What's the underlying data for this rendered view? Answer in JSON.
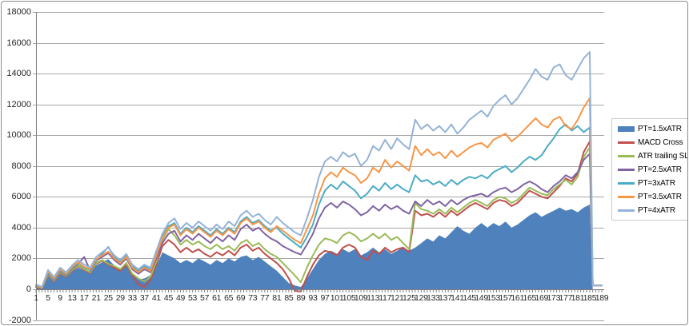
{
  "chart": {
    "background": "#ffffff",
    "frame_border_color": "#8c8c8c",
    "gridline_color": "#a6a6a6",
    "axis_line_color": "#7f7f7f",
    "text_color": "#262626",
    "y_axis": {
      "min": -2000,
      "max": 18000,
      "step": 2000,
      "tick_values": [
        -2000,
        0,
        2000,
        4000,
        6000,
        8000,
        10000,
        12000,
        14000,
        16000,
        18000
      ],
      "tick_labels": [
        "-2000",
        "0",
        "2000",
        "4000",
        "6000",
        "8000",
        "10000",
        "12000",
        "14000",
        "16000",
        "18000"
      ]
    },
    "x_axis": {
      "first_point": 1,
      "last_point": 189,
      "label_step": 4,
      "tick_labels": [
        "1",
        "5",
        "9",
        "13",
        "17",
        "21",
        "25",
        "29",
        "33",
        "37",
        "41",
        "45",
        "49",
        "53",
        "57",
        "61",
        "65",
        "69",
        "73",
        "77",
        "81",
        "85",
        "89",
        "93",
        "97",
        "101",
        "105",
        "109",
        "113",
        "117",
        "121",
        "125",
        "129",
        "133",
        "137",
        "141",
        "145",
        "149",
        "153",
        "157",
        "161",
        "165",
        "169",
        "173",
        "177",
        "181",
        "185",
        "189"
      ]
    }
  },
  "legend": {
    "position": "right",
    "items": [
      {
        "label": "PT=1.5xATR",
        "color": "#4F81BD",
        "marker": "bar"
      },
      {
        "label": "MACD Cross",
        "color": "#C0504D",
        "marker": "line"
      },
      {
        "label": "ATR trailing SL",
        "color": "#9BBB59",
        "marker": "line"
      },
      {
        "label": "PT=2.5xATR",
        "color": "#8064A2",
        "marker": "line"
      },
      {
        "label": "PT=3xATR",
        "color": "#4BACC6",
        "marker": "line"
      },
      {
        "label": "PT=3.5xATR",
        "color": "#F79646",
        "marker": "line"
      },
      {
        "label": "PT=4xATR",
        "color": "#95B3D7",
        "marker": "line"
      }
    ]
  },
  "chart_data": {
    "type": "area",
    "title": "",
    "xlabel": "",
    "ylabel": "",
    "ylim": [
      -2000,
      18000
    ],
    "xlim": [
      1,
      189
    ],
    "grid": true,
    "legend_position": "right",
    "x": [
      1,
      3,
      5,
      7,
      9,
      11,
      13,
      15,
      17,
      19,
      21,
      23,
      25,
      27,
      29,
      31,
      33,
      35,
      37,
      39,
      41,
      43,
      45,
      47,
      49,
      51,
      53,
      55,
      57,
      59,
      61,
      63,
      65,
      67,
      69,
      71,
      73,
      75,
      77,
      79,
      81,
      83,
      85,
      87,
      89,
      91,
      93,
      95,
      97,
      99,
      101,
      103,
      105,
      107,
      109,
      111,
      113,
      115,
      117,
      119,
      121,
      123,
      125,
      127,
      129,
      131,
      133,
      135,
      137,
      139,
      141,
      143,
      145,
      147,
      149,
      151,
      153,
      155,
      157,
      159,
      161,
      163,
      165,
      167,
      169,
      171,
      173,
      175,
      177,
      179,
      181,
      183,
      185,
      186,
      189
    ],
    "series": [
      {
        "name": "PT=1.5xATR",
        "type": "area",
        "color": "#4F81BD",
        "values": [
          150,
          60,
          850,
          500,
          1000,
          750,
          1150,
          1400,
          1200,
          1000,
          1550,
          1750,
          1950,
          1550,
          1350,
          1600,
          1000,
          650,
          700,
          900,
          1500,
          2400,
          2200,
          2000,
          1700,
          1900,
          1700,
          2000,
          1800,
          1600,
          1900,
          1700,
          2000,
          1800,
          2100,
          2200,
          1900,
          2100,
          1800,
          1500,
          1200,
          800,
          400,
          250,
          150,
          700,
          1300,
          1900,
          2300,
          2500,
          2300,
          2600,
          2400,
          2600,
          2200,
          2400,
          2700,
          2400,
          2600,
          2300,
          2500,
          2700,
          2500,
          2700,
          3000,
          3300,
          3100,
          3500,
          3300,
          3700,
          4100,
          3800,
          3600,
          4000,
          4300,
          4000,
          4300,
          4100,
          4400,
          4000,
          4200,
          4500,
          4800,
          5000,
          4700,
          4900,
          5100,
          5300,
          5100,
          5200,
          5000,
          5300,
          5500,
          0,
          0
        ]
      },
      {
        "name": "MACD Cross",
        "type": "line",
        "color": "#C0504D",
        "values": [
          150,
          50,
          900,
          500,
          1050,
          800,
          1200,
          1500,
          1250,
          1050,
          1650,
          1850,
          1600,
          1400,
          1200,
          1600,
          900,
          300,
          150,
          600,
          1600,
          2800,
          3200,
          2900,
          2400,
          2700,
          2400,
          2600,
          2300,
          2100,
          2400,
          2200,
          2500,
          2200,
          2700,
          2900,
          2500,
          2700,
          2300,
          2000,
          1700,
          1300,
          700,
          -100,
          -150,
          800,
          1600,
          2200,
          2500,
          2400,
          2200,
          2700,
          2900,
          2700,
          2100,
          1900,
          2500,
          2300,
          2700,
          2400,
          2600,
          2700,
          2400,
          5100,
          4800,
          4900,
          4700,
          5000,
          4700,
          5100,
          4800,
          5100,
          5400,
          5600,
          5400,
          5200,
          5600,
          5800,
          5700,
          5400,
          5600,
          6000,
          6400,
          6200,
          6000,
          5900,
          6300,
          6700,
          7200,
          7000,
          7500,
          8900,
          9600,
          250,
          250
        ]
      },
      {
        "name": "ATR trailing SL",
        "type": "line",
        "color": "#9BBB59",
        "values": [
          200,
          80,
          950,
          550,
          1100,
          850,
          1250,
          1550,
          1300,
          1100,
          1700,
          1900,
          1650,
          1500,
          1300,
          1700,
          1000,
          700,
          500,
          800,
          1800,
          3200,
          3900,
          3500,
          2900,
          3200,
          2900,
          3100,
          2800,
          2600,
          2900,
          2600,
          2800,
          2500,
          3000,
          3200,
          2800,
          3000,
          2600,
          2300,
          2100,
          1700,
          1300,
          900,
          450,
          1400,
          2200,
          2900,
          3300,
          3200,
          3000,
          3500,
          3700,
          3500,
          3100,
          3300,
          3600,
          3300,
          3600,
          3200,
          3400,
          3000,
          2600,
          5600,
          5200,
          5100,
          4900,
          5200,
          4900,
          5300,
          5000,
          5300,
          5600,
          5800,
          5600,
          5400,
          5800,
          6000,
          5900,
          5600,
          5800,
          6200,
          6600,
          6400,
          6200,
          6100,
          6500,
          6800,
          7100,
          6800,
          7300,
          8600,
          9200,
          250,
          250
        ]
      },
      {
        "name": "PT=2.5xATR",
        "type": "line",
        "color": "#8064A2",
        "values": [
          250,
          100,
          1050,
          600,
          1200,
          900,
          1350,
          1650,
          2100,
          1200,
          1850,
          2100,
          2350,
          1900,
          1600,
          2000,
          1300,
          1000,
          1300,
          1100,
          2000,
          3000,
          3600,
          3800,
          3100,
          3500,
          3200,
          3600,
          3300,
          3000,
          3400,
          3100,
          3500,
          3200,
          3900,
          4200,
          3800,
          4000,
          3600,
          3300,
          3100,
          2800,
          2600,
          2400,
          2250,
          2900,
          3600,
          4600,
          5300,
          5600,
          5300,
          5700,
          5500,
          5200,
          4800,
          5000,
          5400,
          5100,
          5500,
          5200,
          5400,
          5100,
          4900,
          5700,
          5400,
          5800,
          5500,
          5700,
          5400,
          5800,
          5500,
          5800,
          6000,
          6100,
          6200,
          6000,
          6300,
          6500,
          6600,
          6300,
          6500,
          6800,
          7000,
          6800,
          6500,
          6300,
          6700,
          7000,
          7400,
          7200,
          7600,
          8400,
          8800,
          250,
          250
        ]
      },
      {
        "name": "PT=3xATR",
        "type": "line",
        "color": "#4BACC6",
        "values": [
          250,
          100,
          1100,
          650,
          1250,
          950,
          1400,
          1700,
          1400,
          1250,
          1900,
          2300,
          2750,
          2100,
          1800,
          2200,
          1500,
          1200,
          1500,
          1300,
          2300,
          3400,
          4100,
          4300,
          3600,
          4000,
          3700,
          4100,
          3800,
          3500,
          3900,
          3600,
          4000,
          3700,
          4400,
          4700,
          4300,
          4500,
          4100,
          3800,
          4000,
          3600,
          3300,
          3000,
          2700,
          3400,
          4200,
          5500,
          6400,
          6800,
          6500,
          7000,
          6700,
          6400,
          5900,
          6200,
          6700,
          6400,
          6900,
          6500,
          6800,
          6500,
          6300,
          7400,
          7000,
          7100,
          6800,
          7000,
          6700,
          7100,
          6800,
          7100,
          7300,
          7200,
          7400,
          7200,
          7600,
          7800,
          8000,
          7600,
          7900,
          8300,
          8600,
          8400,
          8700,
          9300,
          9800,
          10400,
          10700,
          10300,
          10600,
          10200,
          10500,
          250,
          250
        ]
      },
      {
        "name": "PT=3.5xATR",
        "type": "line",
        "color": "#F79646",
        "values": [
          250,
          100,
          1150,
          700,
          1300,
          1000,
          1450,
          1750,
          1450,
          1300,
          1950,
          2200,
          2450,
          2000,
          1700,
          2100,
          1400,
          1100,
          1400,
          1200,
          2200,
          3300,
          4000,
          4200,
          3500,
          3900,
          3600,
          4000,
          3700,
          3400,
          3800,
          3500,
          3900,
          3600,
          4300,
          4600,
          4200,
          4400,
          4000,
          3700,
          4100,
          3800,
          3500,
          3200,
          3000,
          3900,
          4800,
          6200,
          7200,
          7600,
          7300,
          7900,
          7600,
          7400,
          6900,
          7200,
          7900,
          7600,
          8400,
          7900,
          8300,
          8000,
          7700,
          9300,
          8700,
          9100,
          8700,
          8900,
          8500,
          9000,
          8600,
          8900,
          9200,
          9400,
          9500,
          9200,
          9700,
          9900,
          10100,
          9600,
          9900,
          10300,
          10700,
          11100,
          10700,
          10500,
          11000,
          11200,
          10600,
          10400,
          11000,
          11800,
          12400,
          250,
          250
        ]
      },
      {
        "name": "PT=4xATR",
        "type": "line",
        "color": "#95B3D7",
        "values": [
          300,
          150,
          1250,
          800,
          1400,
          1100,
          1550,
          1900,
          1600,
          1400,
          2100,
          2400,
          2700,
          2200,
          1900,
          2300,
          1600,
          1300,
          1600,
          1400,
          2500,
          3600,
          4300,
          4600,
          3900,
          4300,
          4000,
          4400,
          4100,
          3800,
          4200,
          3900,
          4400,
          4100,
          4800,
          5100,
          4700,
          4900,
          4500,
          4200,
          4700,
          4300,
          4000,
          3700,
          3500,
          4600,
          5800,
          7300,
          8300,
          8600,
          8300,
          8900,
          8600,
          8800,
          8000,
          8400,
          9300,
          9000,
          9700,
          9100,
          9800,
          9400,
          9100,
          11000,
          10400,
          10700,
          10300,
          10600,
          10200,
          10700,
          10100,
          10500,
          11000,
          11300,
          11600,
          11200,
          11900,
          12300,
          12600,
          12000,
          12400,
          13000,
          13600,
          14300,
          13800,
          13600,
          14400,
          14600,
          13900,
          13600,
          14300,
          15000,
          15400,
          250,
          250
        ]
      }
    ]
  }
}
